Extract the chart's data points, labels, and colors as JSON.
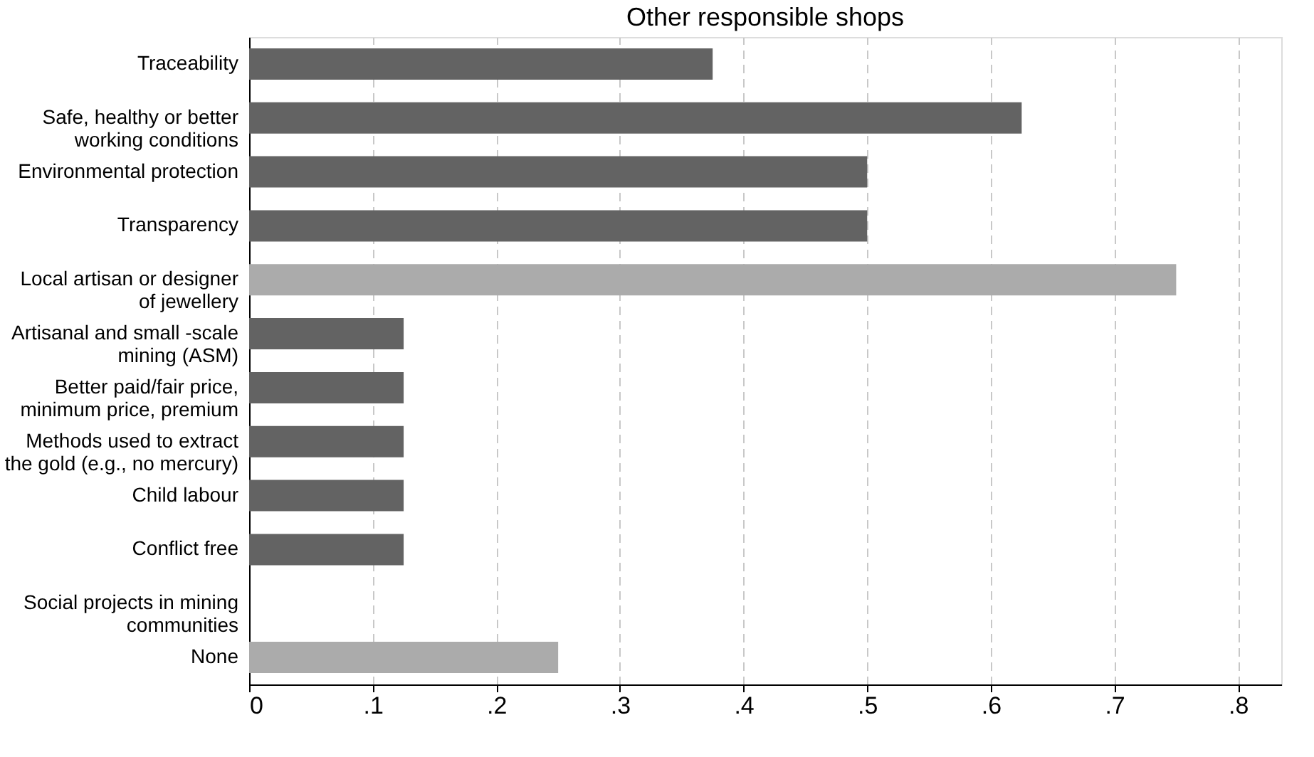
{
  "chart_data": {
    "type": "bar",
    "orientation": "horizontal",
    "title": "Other responsible shops",
    "categories": [
      "Traceability",
      "Safe, healthy or better\nworking conditions",
      "Environmental protection",
      "Transparency",
      "Local artisan or designer\nof jewellery",
      "Artisanal and small -scale\nmining (ASM)",
      "Better paid/fair price,\nminimum price, premium",
      "Methods used to extract\nthe gold (e.g., no mercury)",
      "Child labour",
      "Conflict free",
      "Social projects in mining\ncommunities",
      "None"
    ],
    "values": [
      0.375,
      0.625,
      0.5,
      0.5,
      0.75,
      0.125,
      0.125,
      0.125,
      0.125,
      0.125,
      0,
      0.25
    ],
    "colors": [
      "#636363",
      "#636363",
      "#636363",
      "#636363",
      "#ababab",
      "#636363",
      "#636363",
      "#636363",
      "#636363",
      "#636363",
      "#636363",
      "#ababab"
    ],
    "xlim": [
      0,
      0.835
    ],
    "xticks": [
      0,
      {
        "value": 0.1,
        "label": ".1"
      },
      {
        "value": 0.2,
        "label": ".2"
      },
      {
        "value": 0.3,
        "label": ".3"
      },
      {
        "value": 0.4,
        "label": ".4"
      },
      {
        "value": 0.5,
        "label": ".5"
      },
      {
        "value": 0.6,
        "label": ".6"
      },
      {
        "value": 0.7,
        "label": ".7"
      },
      {
        "value": 0.8,
        "label": ".8"
      }
    ],
    "grid": "x"
  }
}
